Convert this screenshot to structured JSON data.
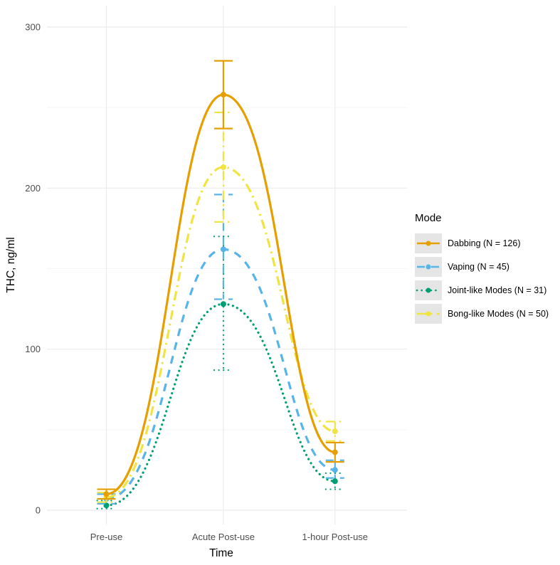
{
  "chart_data": {
    "type": "line",
    "title": "",
    "xlabel": "Time",
    "ylabel": "THC, ng/ml",
    "legend_title": "Mode",
    "legend_position": "right",
    "grid": true,
    "categories": [
      "Pre-use",
      "Acute Post-use",
      "1-hour Post-use"
    ],
    "y_ticks": [
      0,
      100,
      200,
      300
    ],
    "y_minor_ticks": [
      50,
      150,
      250
    ],
    "ylim": [
      0,
      300
    ],
    "series": [
      {
        "name": "Dabbing (N = 126)",
        "color": "#E69F00",
        "linetype": "solid",
        "values": [
          10,
          258,
          36
        ],
        "error_low": [
          7,
          237,
          30
        ],
        "error_high": [
          13,
          279,
          42
        ]
      },
      {
        "name": "Vaping (N = 45)",
        "color": "#56B4E9",
        "linetype": "dashed",
        "values": [
          7,
          162,
          25
        ],
        "error_low": [
          4,
          131,
          20
        ],
        "error_high": [
          10,
          196,
          31
        ]
      },
      {
        "name": "Joint-like Modes (N = 31)",
        "color": "#009E73",
        "linetype": "dotted",
        "values": [
          3,
          128,
          18
        ],
        "error_low": [
          1,
          87,
          13
        ],
        "error_high": [
          6,
          170,
          23
        ]
      },
      {
        "name": "Bong-like Modes (N = 50)",
        "color": "#F0E442",
        "linetype": "dashdot",
        "values": [
          8,
          213,
          49
        ],
        "error_low": [
          5,
          179,
          43
        ],
        "error_high": [
          11,
          247,
          55
        ]
      }
    ],
    "draw_order": [
      2,
      1,
      3,
      0
    ],
    "colors": {
      "grid_major": "#EBEBEB",
      "grid_minor": "#F5F5F5",
      "axis_text": "#4D4D4D",
      "title_text": "#000000",
      "legend_key_bg": "#E5E5E5",
      "background": "#FFFFFF"
    }
  }
}
